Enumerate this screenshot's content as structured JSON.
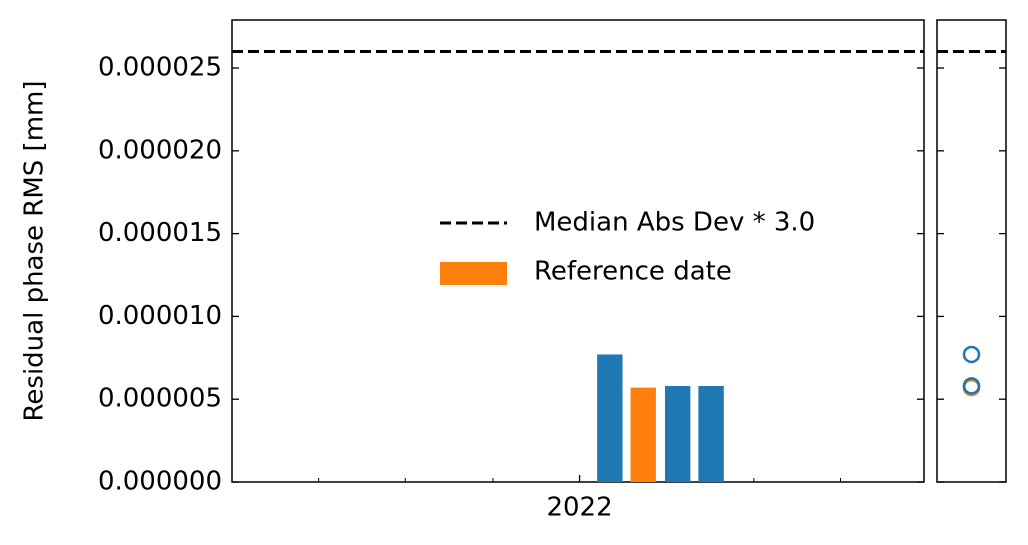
{
  "chart_data": [
    {
      "type": "bar",
      "ylabel": "Residual phase RMS [mm]",
      "x": [
        2022.029,
        2022.061,
        2022.094,
        2022.126
      ],
      "values": [
        7.7e-06,
        5.7e-06,
        5.8e-06,
        5.8e-06
      ],
      "colors": [
        "#1f77b4",
        "#ff7f0e",
        "#1f77b4",
        "#1f77b4"
      ],
      "reference": {
        "name": "Reference date",
        "color": "#ff7f0e"
      },
      "hline": {
        "name": "Median Abs Dev * 3.0",
        "value": 2.6e-05,
        "color": "#000000"
      },
      "xlim": [
        2021.667,
        2022.33
      ],
      "xticks": [
        2022
      ],
      "xminorticks": [
        2021.75,
        2021.833,
        2021.917,
        2022.083,
        2022.167,
        2022.25
      ],
      "ylim": [
        0,
        2.79e-05
      ],
      "yticks": [
        {
          "value": 0,
          "label": "0.000000"
        },
        {
          "value": 5e-06,
          "label": "0.000005"
        },
        {
          "value": 1e-05,
          "label": "0.000010"
        },
        {
          "value": 1.5e-05,
          "label": "0.000015"
        },
        {
          "value": 2e-05,
          "label": "0.000020"
        },
        {
          "value": 2.5e-05,
          "label": "0.000025"
        }
      ]
    },
    {
      "type": "scatter",
      "values": [
        7.7e-06,
        5.7e-06,
        5.8e-06,
        5.8e-06
      ],
      "colors": [
        "#1f77b4",
        "#ff7f0e",
        "#1f77b4",
        "#1f77b4"
      ],
      "hline": {
        "value": 2.6e-05,
        "color": "#000000"
      },
      "ylim": [
        0,
        2.79e-05
      ],
      "ytick_marks": [
        0,
        5e-06,
        1e-05,
        1.5e-05,
        2e-05,
        2.5e-05
      ]
    }
  ]
}
